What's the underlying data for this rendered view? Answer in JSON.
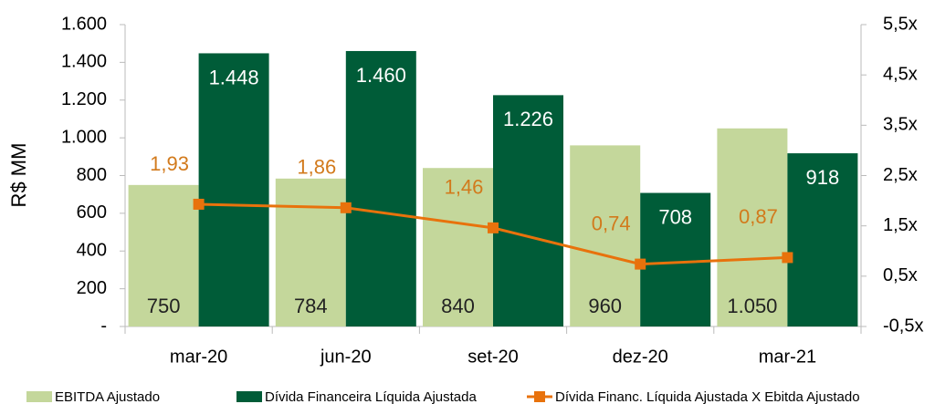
{
  "chart_data": {
    "type": "bar",
    "y_label": "R$ MM",
    "categories": [
      "mar-20",
      "jun-20",
      "set-20",
      "dez-20",
      "mar-21"
    ],
    "series": [
      {
        "name": "EBITDA Ajustado",
        "color": "#c4d79b",
        "values": [
          750,
          784,
          840,
          960,
          1050
        ],
        "value_labels": [
          "750",
          "784",
          "840",
          "960",
          "1.050"
        ]
      },
      {
        "name": "Dívida Financeira Líquida Ajustada",
        "color": "#005c38",
        "values": [
          1448,
          1460,
          1226,
          708,
          918
        ],
        "value_labels": [
          "1.448",
          "1.460",
          "1.226",
          "708",
          "918"
        ]
      },
      {
        "name": "Dívida Financ. Líquida Ajustada X Ebitda Ajustado",
        "type": "line",
        "axis": "y2",
        "color": "#e8720c",
        "values": [
          1.93,
          1.86,
          1.46,
          0.74,
          0.87
        ],
        "value_labels": [
          "1,93",
          "1,86",
          "1,46",
          "0,74",
          "0,87"
        ]
      }
    ],
    "ylim": [
      0,
      1600
    ],
    "yticks": [
      {
        "value": 0,
        "label": "-"
      },
      200,
      400,
      600,
      800,
      {
        "value": 1000,
        "label": "1.000"
      },
      {
        "value": 1200,
        "label": "1.200"
      },
      {
        "value": 1400,
        "label": "1.400"
      },
      {
        "value": 1600,
        "label": "1.600"
      }
    ],
    "y2lim": [
      -0.5,
      5.5
    ],
    "y2ticks": [
      {
        "value": -0.5,
        "label": "-0,5x"
      },
      {
        "value": 0.5,
        "label": "0,5x"
      },
      {
        "value": 1.5,
        "label": "1,5x"
      },
      {
        "value": 2.5,
        "label": "2,5x"
      },
      {
        "value": 3.5,
        "label": "3,5x"
      },
      {
        "value": 4.5,
        "label": "4,5x"
      },
      {
        "value": 5.5,
        "label": "5,5x"
      }
    ],
    "legend": "bottom"
  }
}
